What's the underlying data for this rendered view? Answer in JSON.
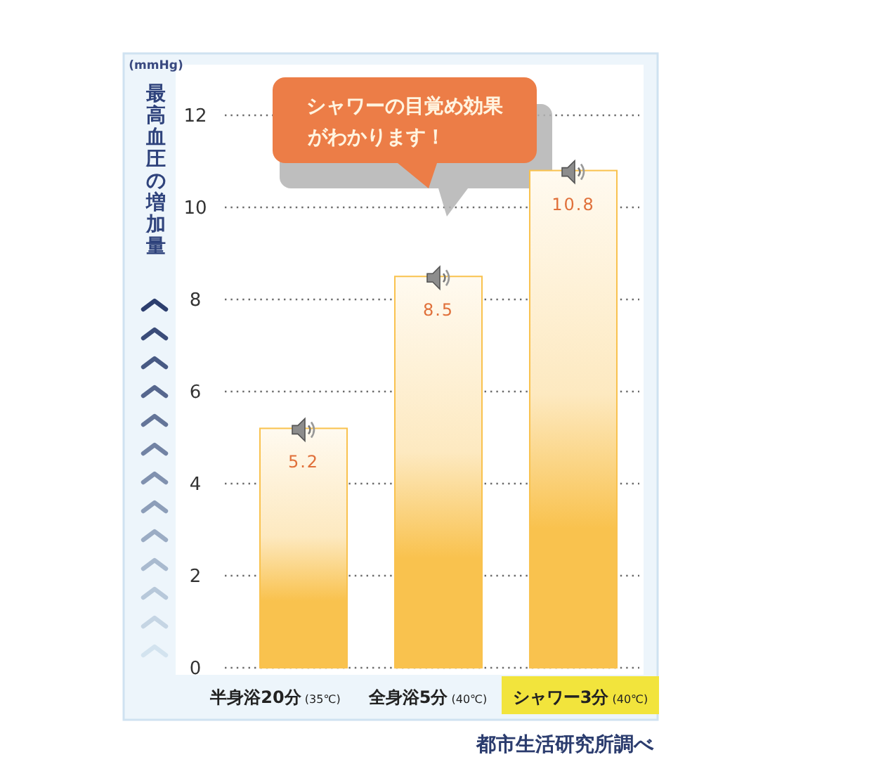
{
  "chart_data": {
    "type": "bar",
    "ylabel": "最高血圧の増加量",
    "categories": [
      "半身浴20分 (35℃)",
      "全身浴5分 (40℃)",
      "シャワー3分 (40℃)"
    ],
    "values": [
      5.2,
      8.5,
      10.8
    ],
    "color": "#f9c24e",
    "ylim": [
      0,
      12
    ],
    "yticks": [
      0,
      2,
      4,
      6,
      8,
      10,
      12
    ],
    "grid": "y",
    "data_labels": true,
    "annotations": [
      "(mmHg)",
      "シャワーの目覚め効果",
      "がわかります！",
      "都市生活研究所調べ"
    ]
  }
}
